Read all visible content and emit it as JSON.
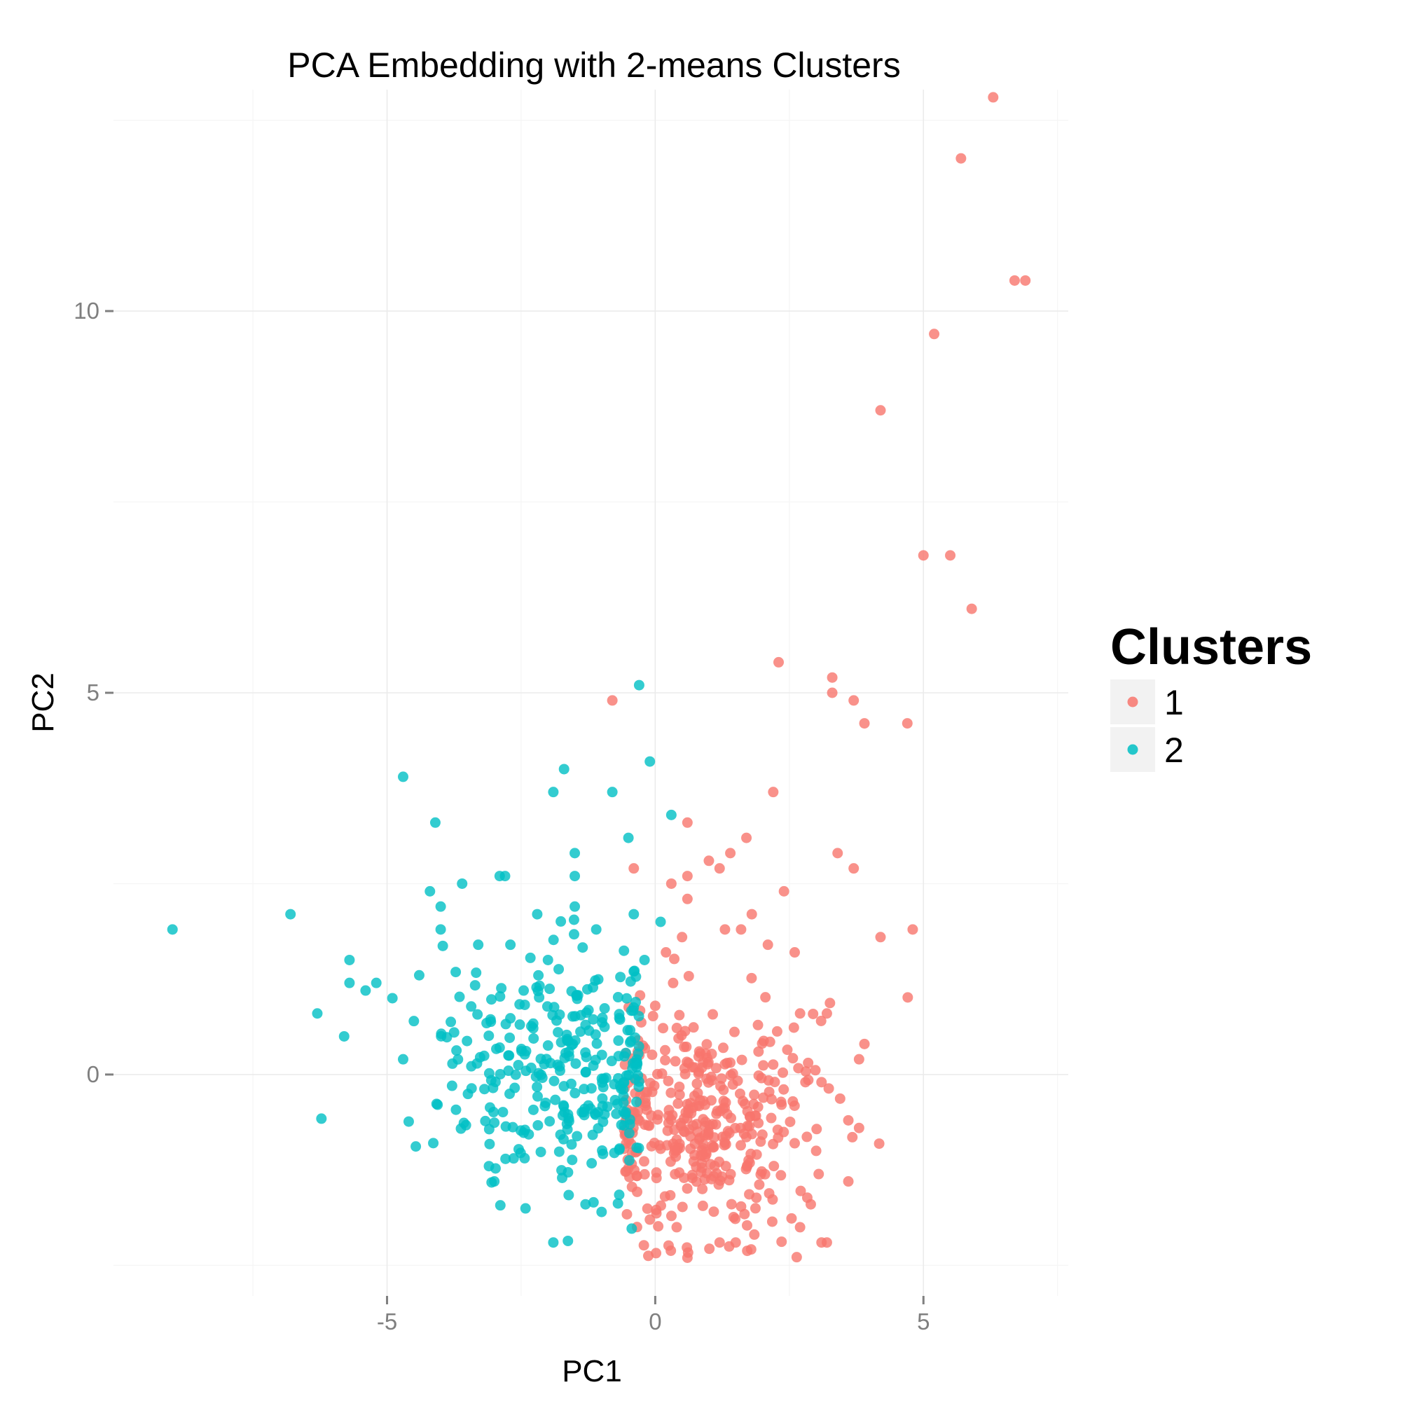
{
  "chart_data": {
    "type": "scatter",
    "title": "PCA Embedding with 2-means Clusters",
    "xlabel": "PC1",
    "ylabel": "PC2",
    "xlim": [
      -10.1,
      7.7
    ],
    "ylim": [
      -2.9,
      12.9
    ],
    "x_ticks": [
      -5,
      0,
      5
    ],
    "y_ticks": [
      0,
      5,
      10
    ],
    "x_tick_labels": [
      "-5",
      "0",
      "5"
    ],
    "y_tick_labels": [
      "0",
      "5",
      "10"
    ],
    "grid": true,
    "legend": {
      "title": "Clusters",
      "placement": "right",
      "entries": [
        "1",
        "2"
      ]
    },
    "colors": {
      "1": "#F8766D",
      "2": "#00BFC4"
    },
    "series": [
      {
        "name": "1",
        "color": "#F8766D",
        "points": [
          [
            6.3,
            12.8
          ],
          [
            5.7,
            12.0
          ],
          [
            6.7,
            10.4
          ],
          [
            6.9,
            10.4
          ],
          [
            5.2,
            9.7
          ],
          [
            4.2,
            8.7
          ],
          [
            5.0,
            6.8
          ],
          [
            5.5,
            6.8
          ],
          [
            5.9,
            6.1
          ],
          [
            2.3,
            5.4
          ],
          [
            3.3,
            5.2
          ],
          [
            3.3,
            5.0
          ],
          [
            3.7,
            4.9
          ],
          [
            3.9,
            4.6
          ],
          [
            4.7,
            4.6
          ],
          [
            -0.8,
            4.9
          ],
          [
            2.2,
            3.7
          ],
          [
            0.6,
            3.3
          ],
          [
            1.7,
            3.1
          ],
          [
            1.4,
            2.9
          ],
          [
            3.4,
            2.9
          ],
          [
            3.7,
            2.7
          ],
          [
            1.0,
            2.8
          ],
          [
            1.2,
            2.7
          ],
          [
            0.6,
            2.6
          ],
          [
            -0.4,
            2.7
          ],
          [
            0.3,
            2.5
          ],
          [
            0.6,
            2.3
          ],
          [
            2.4,
            2.4
          ],
          [
            1.8,
            2.1
          ],
          [
            1.6,
            1.9
          ],
          [
            1.3,
            1.9
          ],
          [
            4.8,
            1.9
          ],
          [
            4.2,
            1.8
          ],
          [
            2.1,
            1.7
          ],
          [
            2.6,
            1.6
          ],
          [
            0.5,
            1.8
          ],
          [
            0.2,
            1.6
          ],
          [
            3.9,
            0.4
          ],
          [
            3.8,
            0.2
          ],
          [
            3.2,
            0.8
          ],
          [
            2.7,
            0.8
          ],
          [
            3.1,
            -0.1
          ],
          [
            3.6,
            -0.6
          ],
          [
            3.8,
            -0.7
          ],
          [
            3.6,
            -1.4
          ],
          [
            3.2,
            -2.2
          ],
          [
            3.1,
            -2.2
          ],
          [
            2.9,
            -1.7
          ],
          [
            2.7,
            -2.0
          ],
          [
            3.0,
            -1.0
          ],
          [
            2.8,
            -0.1
          ],
          [
            2.6,
            -0.9
          ],
          [
            0.6,
            -2.4
          ],
          [
            1.2,
            -2.2
          ],
          [
            1.5,
            -2.2
          ],
          [
            -0.1,
            -1.9
          ],
          [
            0.4,
            -2.0
          ]
        ],
        "cluster_centers": [
          [
            0.9,
            -0.6
          ]
        ],
        "cluster_spread": [
          [
            1.0,
            0.8
          ]
        ],
        "cluster_count": 380
      },
      {
        "name": "2",
        "color": "#00BFC4",
        "points": [
          [
            -9.0,
            1.9
          ],
          [
            -6.8,
            2.1
          ],
          [
            -6.3,
            0.8
          ],
          [
            -5.8,
            0.5
          ],
          [
            -5.7,
            1.5
          ],
          [
            -5.7,
            1.2
          ],
          [
            -5.4,
            1.1
          ],
          [
            -5.2,
            1.2
          ],
          [
            -4.9,
            1.0
          ],
          [
            -4.7,
            3.9
          ],
          [
            -4.7,
            0.2
          ],
          [
            -4.5,
            0.7
          ],
          [
            -4.4,
            1.3
          ],
          [
            -4.2,
            2.4
          ],
          [
            -4.1,
            3.3
          ],
          [
            -4.0,
            2.2
          ],
          [
            -4.0,
            1.9
          ],
          [
            -3.6,
            2.5
          ],
          [
            -3.3,
            1.7
          ],
          [
            -2.9,
            2.6
          ],
          [
            -2.8,
            2.6
          ],
          [
            -2.7,
            1.7
          ],
          [
            -2.2,
            2.1
          ],
          [
            -2.0,
            1.5
          ],
          [
            -1.9,
            3.7
          ],
          [
            -1.7,
            4.0
          ],
          [
            -1.5,
            2.9
          ],
          [
            -1.5,
            2.6
          ],
          [
            -1.5,
            2.2
          ],
          [
            -1.1,
            1.9
          ],
          [
            -0.8,
            3.7
          ],
          [
            -0.5,
            3.1
          ],
          [
            -0.4,
            2.1
          ],
          [
            -0.3,
            5.1
          ],
          [
            -0.1,
            4.1
          ],
          [
            0.3,
            3.4
          ],
          [
            0.1,
            2.0
          ],
          [
            -0.2,
            1.5
          ],
          [
            -1.9,
            -2.2
          ],
          [
            -3.0,
            -1.4
          ],
          [
            -3.1,
            -1.2
          ],
          [
            -1.3,
            -1.7
          ],
          [
            -1.0,
            -1.8
          ]
        ],
        "cluster_centers": [
          [
            -1.8,
            0.1
          ]
        ],
        "cluster_spread": [
          [
            1.1,
            0.8
          ]
        ],
        "cluster_count": 300
      }
    ]
  }
}
